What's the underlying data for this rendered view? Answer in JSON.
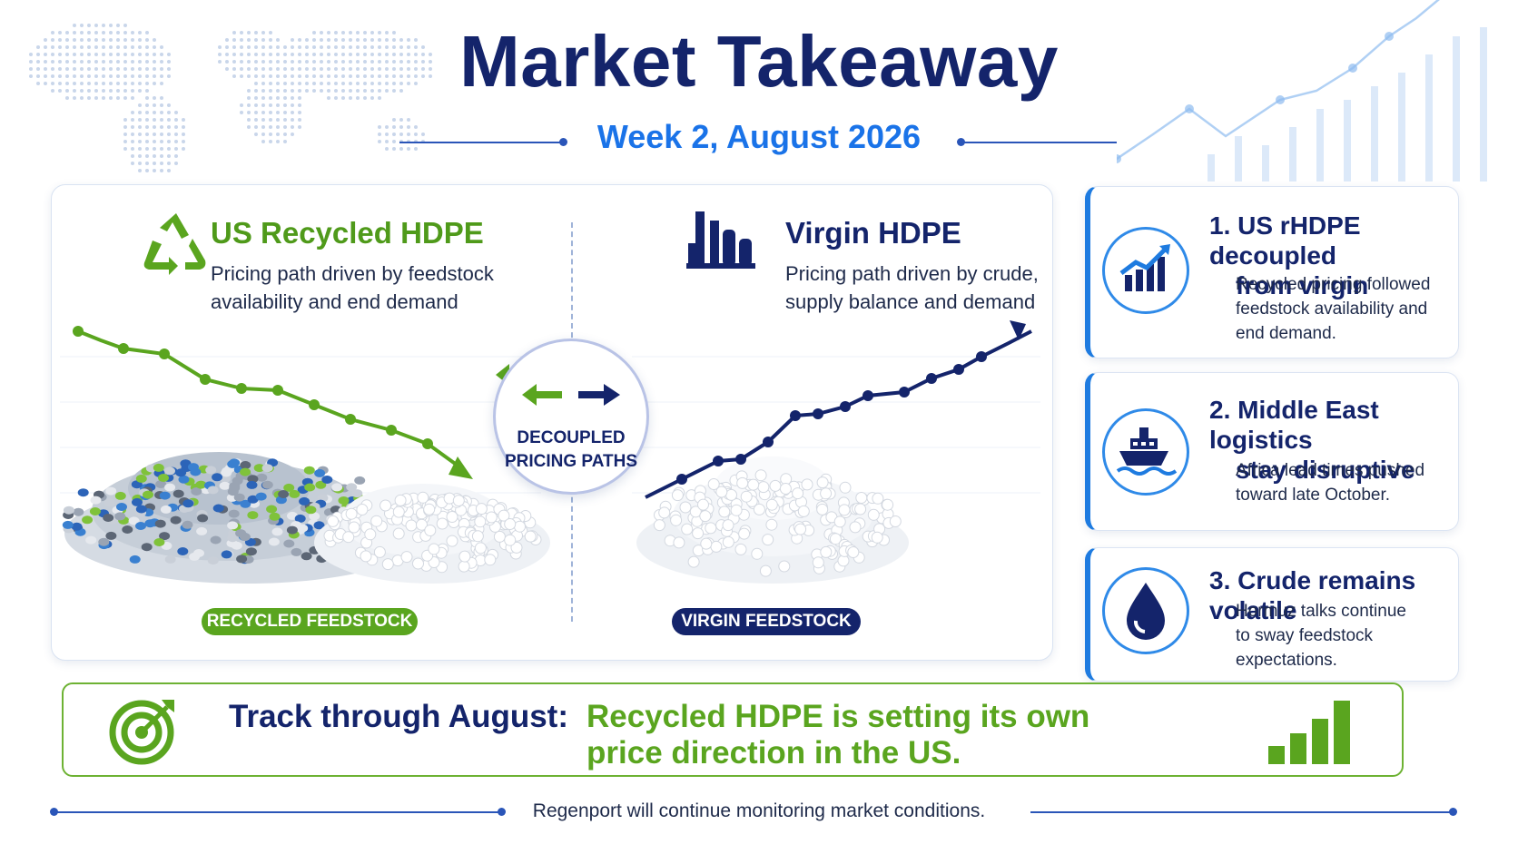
{
  "header": {
    "title": "Market Takeaway",
    "subtitle": "Week 2, August 2026"
  },
  "recycled": {
    "title": "US Recycled HDPE",
    "description": "Pricing path driven by feedstock availability and end demand",
    "pill": "RECYCLED FEEDSTOCK",
    "icon": "recycle-icon",
    "color": "#5aa51f"
  },
  "virgin": {
    "title": "Virgin HDPE",
    "description": "Pricing path driven by crude, supply balance and demand",
    "pill": "VIRGIN FEEDSTOCK",
    "icon": "factory-icon",
    "color": "#14246b"
  },
  "badge": {
    "line1": "DECOUPLED",
    "line2": "PRICING PATHS"
  },
  "cards": [
    {
      "title_line1": "1. US rHDPE decoupled",
      "title_line2": "from virgin",
      "text_line1": "Recycled pricing followed",
      "text_line2": "feedstock availability and",
      "text_line3": "end demand.",
      "icon": "trend-chart-icon"
    },
    {
      "title_line1": "2. Middle East logistics",
      "title_line2": "stay disruptive",
      "text_line1": "Africa lead times pushed",
      "text_line2": "toward late October.",
      "icon": "ship-icon"
    },
    {
      "title_line1": "3. Crude remains volatile",
      "text_line1": "Hormuz talks continue",
      "text_line2": "to sway feedstock",
      "text_line3": "expectations.",
      "icon": "oil-drop-icon"
    }
  ],
  "track": {
    "label": "Track through August:",
    "text_line1": "Recycled HDPE is setting its own",
    "text_line2": "price direction in the US.",
    "icon": "target-icon",
    "bars_icon": "bar-chart-icon"
  },
  "footer": {
    "text": "Regenport will continue monitoring market conditions."
  },
  "colors": {
    "navy": "#14246b",
    "blue": "#1a73e8",
    "green": "#5aa51f"
  }
}
